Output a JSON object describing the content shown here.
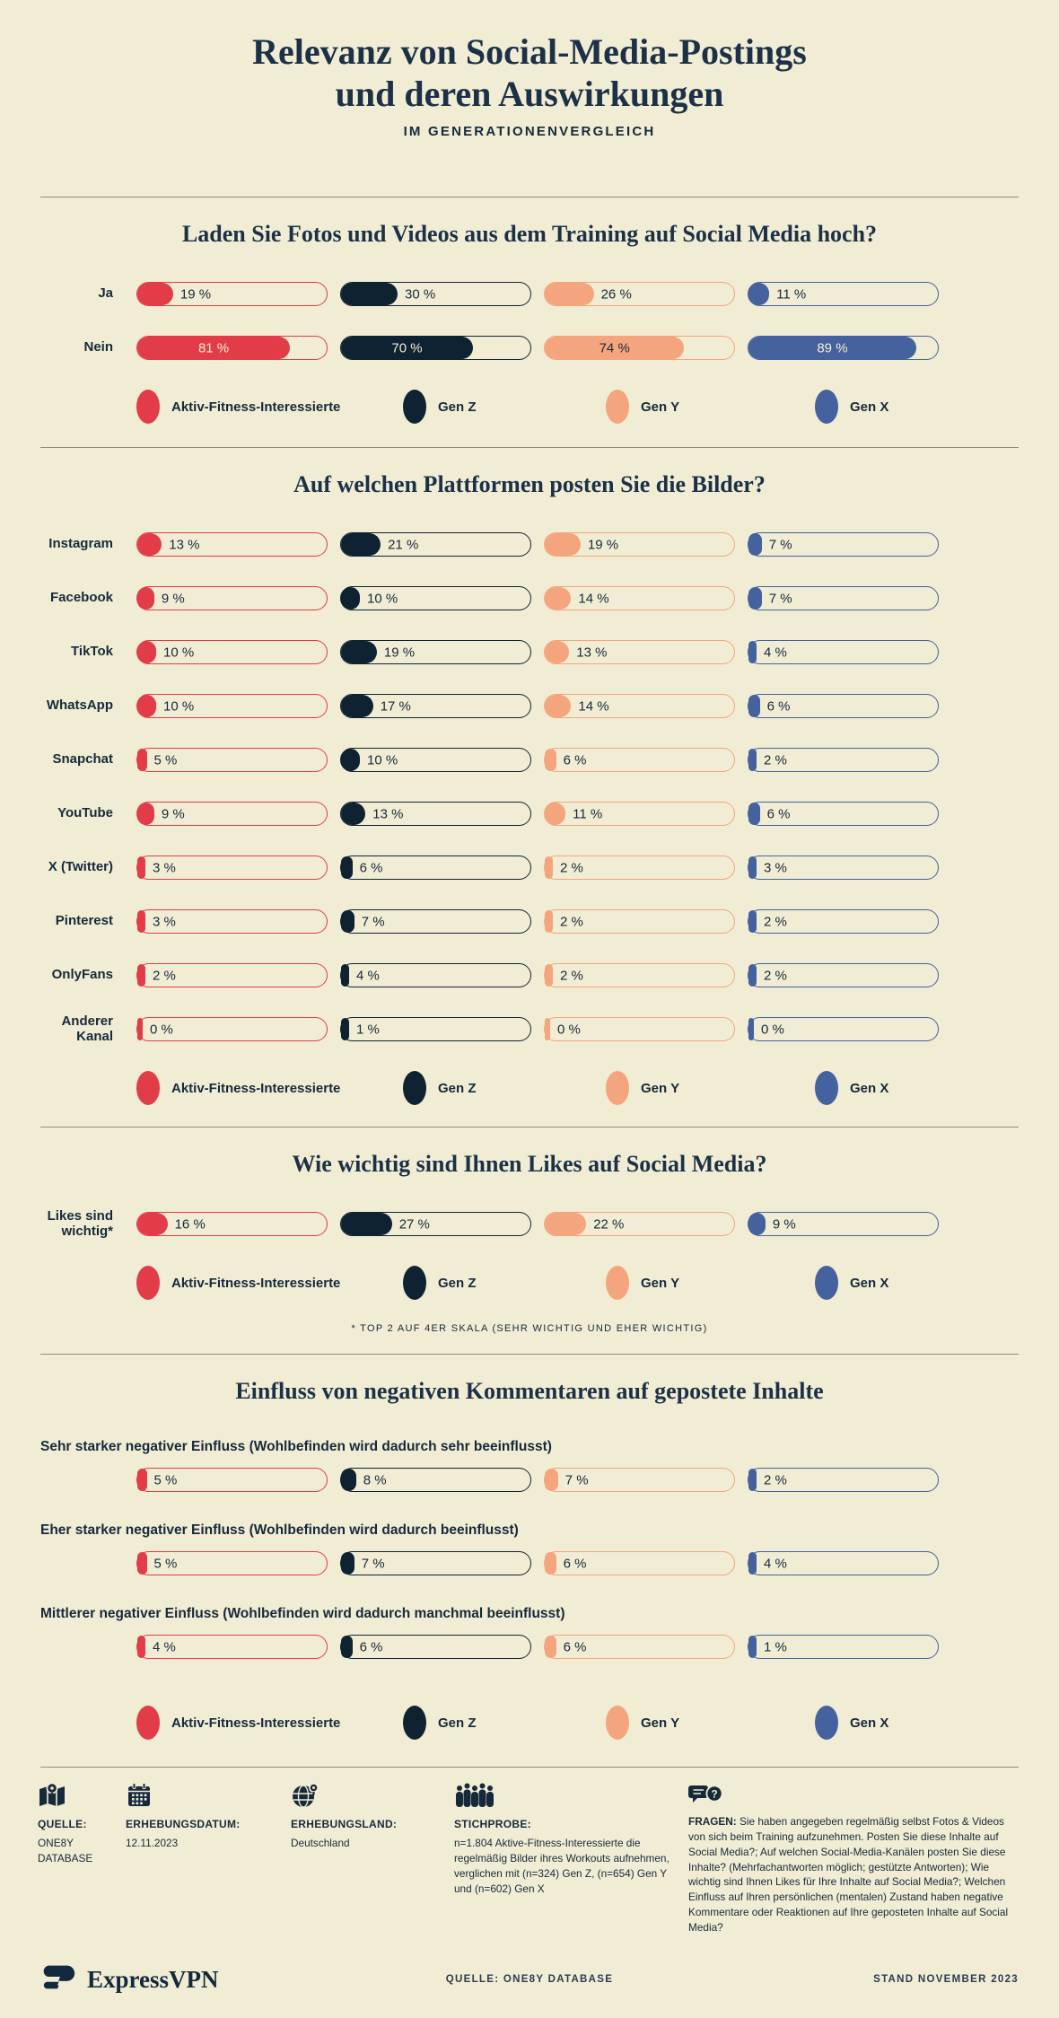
{
  "palette": {
    "background": "#f1edd4",
    "navy": "#16293b",
    "title_navy": "#1c3147",
    "red": "#e23c49",
    "gen_z": "#0f2231",
    "peach": "#f4a57d",
    "blue": "#45619e",
    "cream_text": "#f1edd5",
    "divider": "#8d8c7d"
  },
  "header": {
    "title_line1": "Relevanz von Social-Media-Postings",
    "title_line2": "und deren Auswirkungen",
    "subtitle": "IM GENERATIONENVERGLEICH"
  },
  "groups": [
    {
      "label": "Aktiv-Fitness-Interessierte",
      "color": "#e23c49",
      "value_color_on_fill": "#f1edd5"
    },
    {
      "label": "Gen Z",
      "color": "#0f2231",
      "value_color_on_fill": "#f1edd5"
    },
    {
      "label": "Gen Y",
      "color": "#f4a57d",
      "value_color_on_fill": "#16293b"
    },
    {
      "label": "Gen X",
      "color": "#45619e",
      "value_color_on_fill": "#f1edd5"
    }
  ],
  "chart_data": [
    {
      "type": "bar",
      "layout": "side-label",
      "title": "Laden Sie Fotos und Videos aus dem Training auf Social Media hoch?",
      "unit": "%",
      "categories": [
        "Ja",
        "Nein"
      ],
      "series": [
        {
          "name": "Aktiv-Fitness-Interessierte",
          "values": [
            19,
            81
          ]
        },
        {
          "name": "Gen Z",
          "values": [
            30,
            70
          ]
        },
        {
          "name": "Gen Y",
          "values": [
            26,
            74
          ]
        },
        {
          "name": "Gen X",
          "values": [
            11,
            89
          ]
        }
      ],
      "xlim": [
        0,
        100
      ],
      "legend_position": "bottom"
    },
    {
      "type": "bar",
      "layout": "side-label",
      "title": "Auf welchen Plattformen posten Sie die Bilder?",
      "unit": "%",
      "categories": [
        "Instagram",
        "Facebook",
        "TikTok",
        "WhatsApp",
        "Snapchat",
        "YouTube",
        "X (Twitter)",
        "Pinterest",
        "OnlyFans",
        "Anderer\nKanal"
      ],
      "series": [
        {
          "name": "Aktiv-Fitness-Interessierte",
          "values": [
            13,
            9,
            10,
            10,
            5,
            9,
            3,
            3,
            2,
            0
          ]
        },
        {
          "name": "Gen Z",
          "values": [
            21,
            10,
            19,
            17,
            10,
            13,
            6,
            7,
            4,
            1
          ]
        },
        {
          "name": "Gen Y",
          "values": [
            19,
            14,
            13,
            14,
            6,
            11,
            2,
            2,
            2,
            0
          ]
        },
        {
          "name": "Gen X",
          "values": [
            7,
            7,
            4,
            6,
            2,
            6,
            3,
            2,
            2,
            0
          ]
        }
      ],
      "xlim": [
        0,
        100
      ],
      "legend_position": "bottom"
    },
    {
      "type": "bar",
      "layout": "side-label",
      "title": "Wie wichtig sind Ihnen Likes auf Social Media?",
      "unit": "%",
      "categories": [
        "Likes sind\nwichtig*"
      ],
      "series": [
        {
          "name": "Aktiv-Fitness-Interessierte",
          "values": [
            16
          ]
        },
        {
          "name": "Gen Z",
          "values": [
            27
          ]
        },
        {
          "name": "Gen Y",
          "values": [
            22
          ]
        },
        {
          "name": "Gen X",
          "values": [
            9
          ]
        }
      ],
      "xlim": [
        0,
        100
      ],
      "legend_position": "bottom",
      "footnote": "* TOP 2 AUF 4ER SKALA (SEHR WICHTIG UND EHER WICHTIG)"
    },
    {
      "type": "bar",
      "layout": "heading-label",
      "title": "Einfluss von negativen Kommentaren auf gepostete Inhalte",
      "unit": "%",
      "categories": [
        "Sehr starker negativer Einfluss (Wohlbefinden wird dadurch sehr beeinflusst)",
        "Eher starker negativer Einfluss (Wohlbefinden wird dadurch beeinflusst)",
        "Mittlerer negativer Einfluss (Wohlbefinden wird dadurch manchmal beeinflusst)"
      ],
      "series": [
        {
          "name": "Aktiv-Fitness-Interessierte",
          "values": [
            5,
            5,
            4
          ]
        },
        {
          "name": "Gen Z",
          "values": [
            8,
            7,
            6
          ]
        },
        {
          "name": "Gen Y",
          "values": [
            7,
            6,
            6
          ]
        },
        {
          "name": "Gen X",
          "values": [
            2,
            4,
            1
          ]
        }
      ],
      "xlim": [
        0,
        100
      ],
      "legend_position": "bottom"
    }
  ],
  "footer": {
    "columns": [
      {
        "icon": "map-pin-icon",
        "label": "QUELLE:",
        "value": "ONE8Y DATABASE"
      },
      {
        "icon": "calendar-icon",
        "label": "ERHEBUNGSDATUM:",
        "value": "12.11.2023"
      },
      {
        "icon": "globe-icon",
        "label": "ERHEBUNGSLAND:",
        "value": "Deutschland"
      },
      {
        "icon": "people-icon",
        "label": "STICHPROBE:",
        "value": "n=1.804 Aktive-Fitness-Interessierte die regelmäßig Bilder ihres Workouts aufnehmen, verglichen mit (n=324) Gen Z, (n=654) Gen Y und (n=602) Gen X"
      },
      {
        "icon": "speech-question-icon",
        "label": "FRAGEN:",
        "value": "Sie haben angegeben regelmäßig selbst Fotos & Videos von sich beim Training aufzunehmen. Posten Sie diese Inhalte auf Social Media?; Auf welchen Social-Media-Kanälen posten Sie diese Inhalte? (Mehrfachantworten möglich; gestützte Antworten); Wie wichtig sind Ihnen Likes für Ihre Inhalte auf Social Media?; Welchen Einfluss auf Ihren persönlichen (mentalen) Zustand haben negative Kommentare oder Reaktionen auf Ihre geposteten Inhalte auf Social Media?"
      }
    ],
    "bottom": {
      "brand": "ExpressVPN",
      "center": "QUELLE: ONE8Y DATABASE",
      "right": "STAND NOVEMBER 2023"
    }
  }
}
